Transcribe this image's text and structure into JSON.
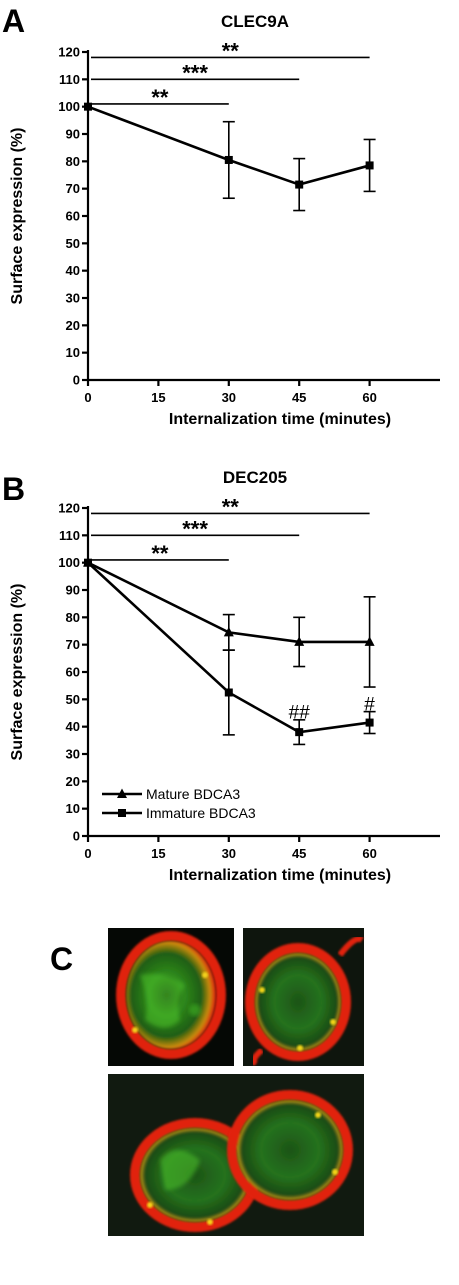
{
  "panels": {
    "a": "A",
    "b": "B",
    "c": "C"
  },
  "chart_data": [
    {
      "type": "line",
      "title": "CLEC9A",
      "xlabel": "Internalization time (minutes)",
      "ylabel": "Surface expression (%)",
      "xlim": [
        0,
        75
      ],
      "ylim": [
        0,
        120
      ],
      "xticks": [
        0,
        15,
        30,
        45,
        60
      ],
      "yticks": [
        0,
        10,
        20,
        30,
        40,
        50,
        60,
        70,
        80,
        90,
        100,
        110,
        120
      ],
      "series": [
        {
          "marker": "square",
          "x": [
            0,
            30,
            45,
            60
          ],
          "y": [
            100,
            80.5,
            71.5,
            78.5
          ],
          "err": [
            0,
            14,
            9.5,
            9.5
          ]
        }
      ],
      "significance": [
        {
          "from": 0,
          "to": 60,
          "level": 118,
          "label": "**"
        },
        {
          "from": 0,
          "to": 45,
          "level": 110,
          "label": "***"
        },
        {
          "from": 0,
          "to": 30,
          "level": 101,
          "label": "**"
        }
      ],
      "annotations": []
    },
    {
      "type": "line",
      "title": "DEC205",
      "xlabel": "Internalization time (minutes)",
      "ylabel": "Surface expression (%)",
      "xlim": [
        0,
        75
      ],
      "ylim": [
        0,
        120
      ],
      "xticks": [
        0,
        15,
        30,
        45,
        60
      ],
      "yticks": [
        0,
        10,
        20,
        30,
        40,
        50,
        60,
        70,
        80,
        90,
        100,
        110,
        120
      ],
      "legend_position": "bottom-left",
      "series": [
        {
          "name": "Mature BDCA3",
          "marker": "triangle",
          "x": [
            0,
            30,
            45,
            60
          ],
          "y": [
            100,
            74.5,
            71,
            71
          ],
          "err": [
            0,
            6.5,
            9,
            16.5
          ]
        },
        {
          "name": "Immature BDCA3",
          "marker": "square",
          "x": [
            0,
            30,
            45,
            60
          ],
          "y": [
            100,
            52.5,
            38,
            41.5
          ],
          "err": [
            0,
            15.5,
            4.5,
            4
          ]
        }
      ],
      "significance": [
        {
          "from": 0,
          "to": 60,
          "level": 118,
          "label": "**"
        },
        {
          "from": 0,
          "to": 45,
          "level": 110,
          "label": "***"
        },
        {
          "from": 0,
          "to": 30,
          "level": 101,
          "label": "**"
        }
      ],
      "annotations": [
        {
          "x": 45,
          "y": 43,
          "label": "##"
        },
        {
          "x": 60,
          "y": 46,
          "label": "#"
        }
      ]
    }
  ]
}
